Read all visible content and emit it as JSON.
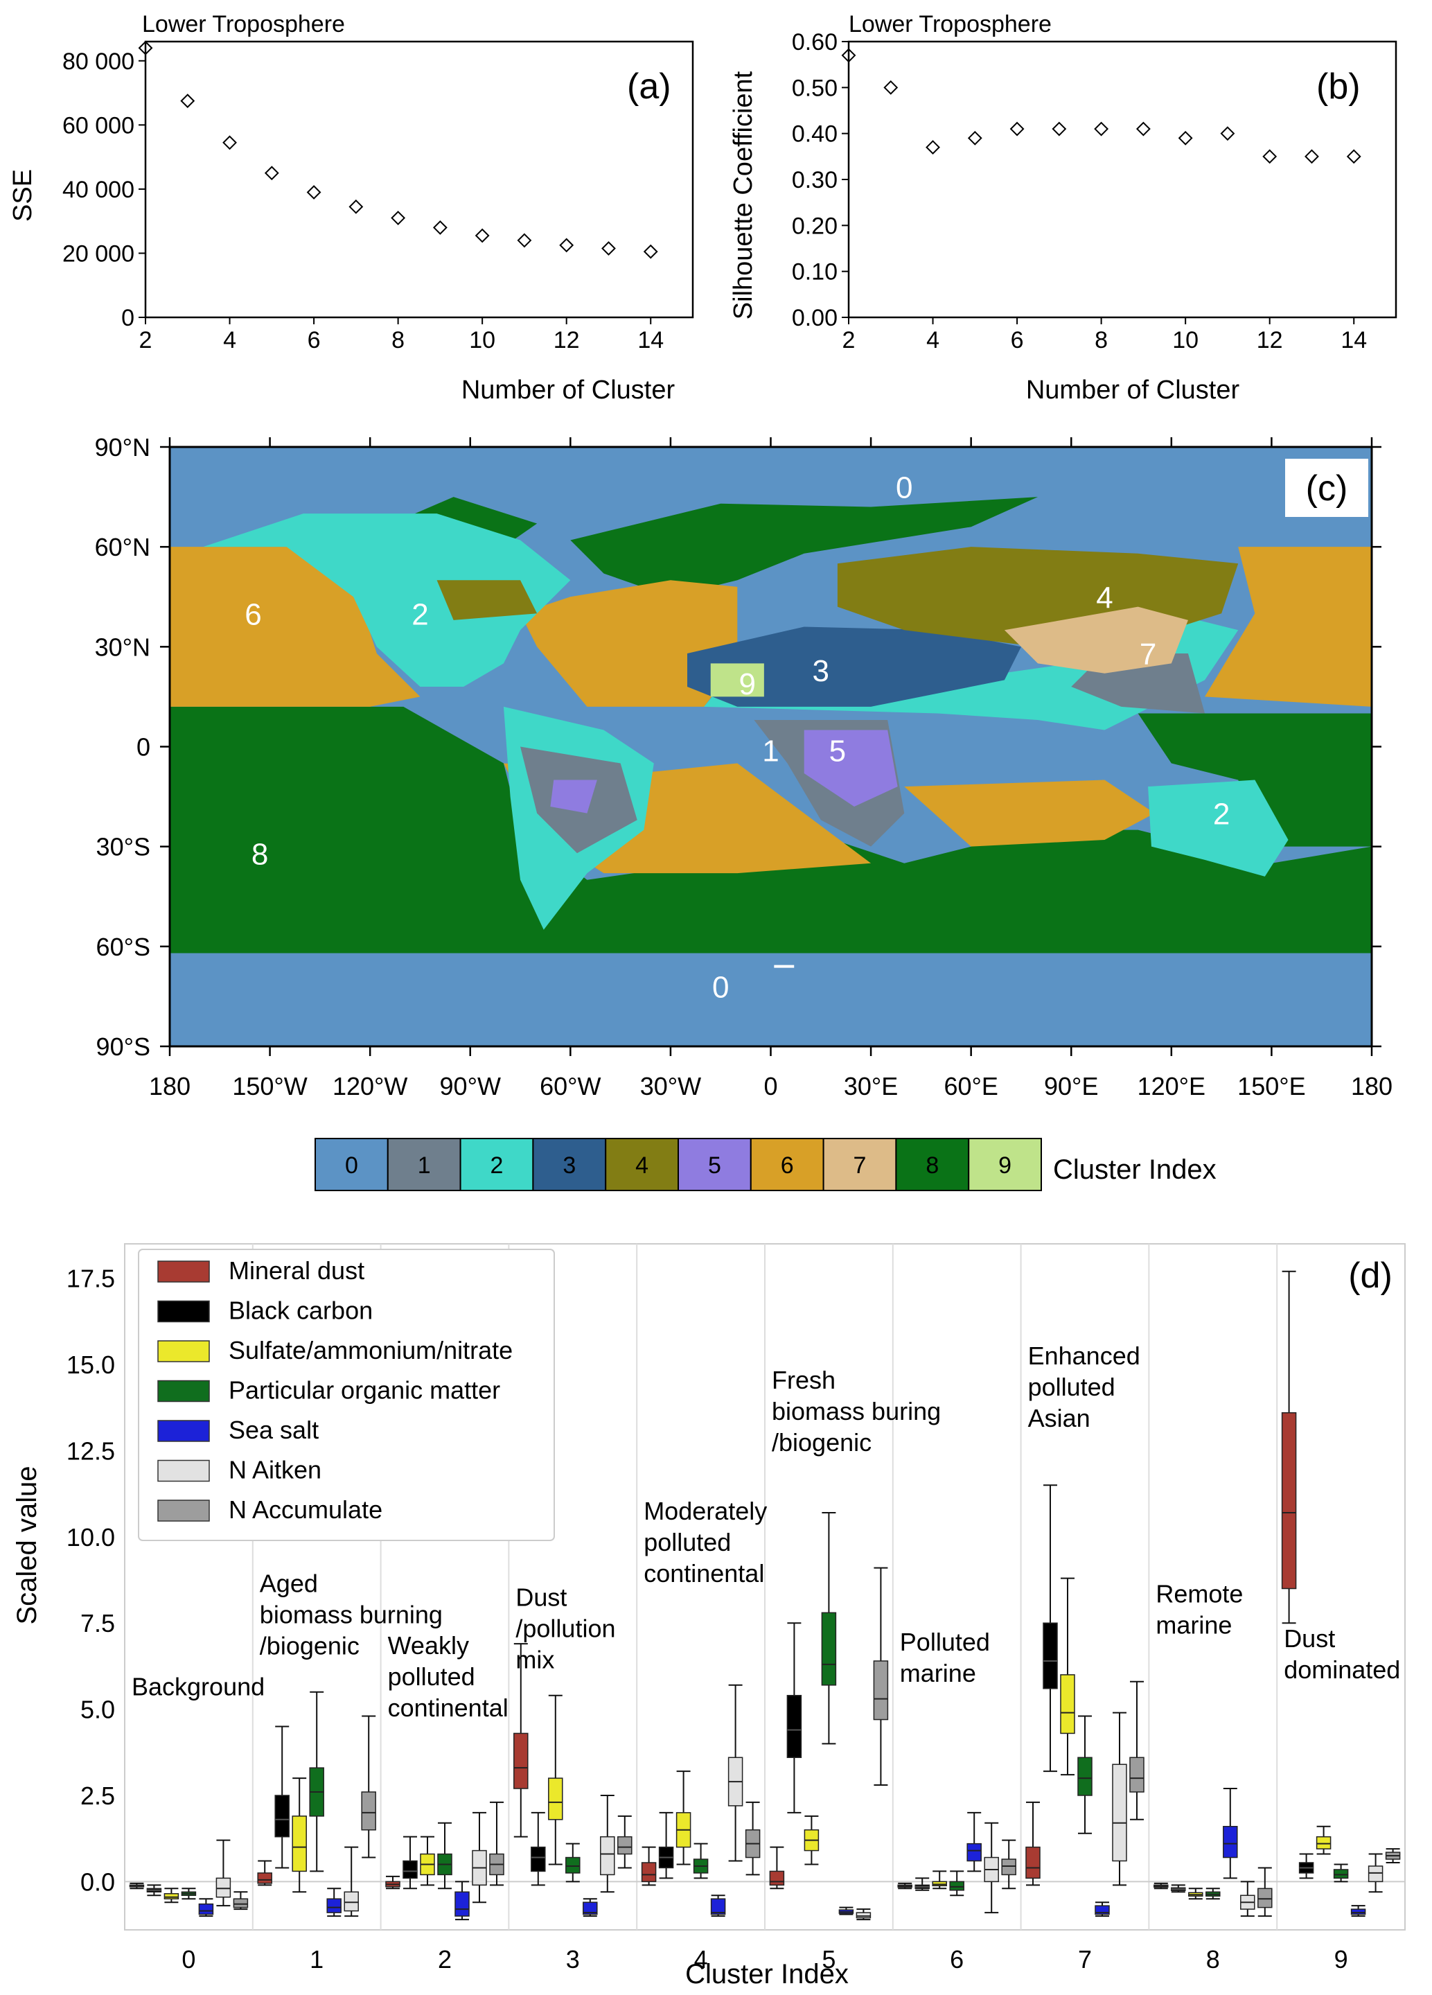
{
  "panel_a": {
    "title": "Lower Troposphere",
    "tag": "(a)",
    "xlabel": "Number of Cluster",
    "ylabel": "SSE",
    "xticks": [
      "2",
      "4",
      "6",
      "8",
      "10",
      "12",
      "14"
    ],
    "yticks": [
      "0",
      "20 000",
      "40 000",
      "60 000",
      "80 000"
    ]
  },
  "panel_b": {
    "title": "Lower Troposphere",
    "tag": "(b)",
    "xlabel": "Number of Cluster",
    "ylabel": "Silhouette Coefficient",
    "xticks": [
      "2",
      "4",
      "6",
      "8",
      "10",
      "12",
      "14"
    ],
    "yticks": [
      "0.00",
      "0.10",
      "0.20",
      "0.30",
      "0.40",
      "0.50",
      "0.60"
    ]
  },
  "panel_c": {
    "tag": "(c)",
    "lat_labels": [
      "90°N",
      "60°N",
      "30°N",
      "0",
      "30°S",
      "60°S",
      "90°S"
    ],
    "lon_labels": [
      "180",
      "150°W",
      "120°W",
      "90°W",
      "60°W",
      "30°W",
      "0",
      "30°E",
      "60°E",
      "90°E",
      "120°E",
      "150°E",
      "180"
    ],
    "region_labels": [
      {
        "text": "0",
        "lon": 40,
        "lat": 78
      },
      {
        "text": "0",
        "lon": -15,
        "lat": -72
      },
      {
        "text": "1",
        "lon": 0,
        "lat": -1
      },
      {
        "text": "2",
        "lon": -105,
        "lat": 40
      },
      {
        "text": "2",
        "lon": 135,
        "lat": -20
      },
      {
        "text": "3",
        "lon": 15,
        "lat": 23
      },
      {
        "text": "4",
        "lon": 100,
        "lat": 45
      },
      {
        "text": "5",
        "lon": 20,
        "lat": -1
      },
      {
        "text": "6",
        "lon": -155,
        "lat": 40
      },
      {
        "text": "7",
        "lon": 113,
        "lat": 28
      },
      {
        "text": "8",
        "lon": -153,
        "lat": -32
      },
      {
        "text": "9",
        "lon": -7,
        "lat": 19
      }
    ],
    "colorbar_title": "Cluster Index",
    "colorbar_labels": [
      "0",
      "1",
      "2",
      "3",
      "4",
      "5",
      "6",
      "7",
      "8",
      "9"
    ],
    "cluster_colors": [
      "#5c93c5",
      "#6f7f8d",
      "#3fd8c8",
      "#2e5e8e",
      "#827d14",
      "#8f7ce0",
      "#d8a027",
      "#ddbb88",
      "#0a7317",
      "#bfe38a"
    ]
  },
  "panel_d": {
    "tag": "(d)",
    "xlabel": "Cluster Index",
    "ylabel": "Scaled value",
    "yticks": [
      "0.0",
      "2.5",
      "5.0",
      "7.5",
      "10.0",
      "12.5",
      "15.0",
      "17.5"
    ],
    "xticks": [
      "0",
      "1",
      "2",
      "3",
      "4",
      "5",
      "6",
      "7",
      "8",
      "9"
    ],
    "legend": [
      {
        "label": "Mineral dust",
        "color": "#a83b32"
      },
      {
        "label": "Black carbon",
        "color": "#000000"
      },
      {
        "label": "Sulfate/ammonium/nitrate",
        "color": "#ebe82b"
      },
      {
        "label": "Particular organic matter",
        "color": "#106e1e"
      },
      {
        "label": "Sea salt",
        "color": "#1c22d8"
      },
      {
        "label": "N Aitken",
        "color": "#e2e2e2"
      },
      {
        "label": "N Accumulate",
        "color": "#9d9d9d"
      }
    ],
    "annotations": [
      {
        "cluster": 0,
        "lines": [
          "Background"
        ]
      },
      {
        "cluster": 1,
        "lines": [
          "Aged",
          "biomass burning",
          "/biogenic"
        ]
      },
      {
        "cluster": 2,
        "lines": [
          "Weakly",
          "polluted",
          "continental"
        ]
      },
      {
        "cluster": 3,
        "lines": [
          "Dust",
          "/pollution",
          "mix"
        ]
      },
      {
        "cluster": 4,
        "lines": [
          "Moderately",
          "polluted",
          "continental"
        ]
      },
      {
        "cluster": 5,
        "lines": [
          "Fresh",
          "biomass buring",
          "/biogenic"
        ]
      },
      {
        "cluster": 6,
        "lines": [
          "Polluted",
          "marine"
        ]
      },
      {
        "cluster": 7,
        "lines": [
          "Enhanced",
          "polluted",
          "Asian"
        ]
      },
      {
        "cluster": 8,
        "lines": [
          "Remote",
          "marine"
        ]
      },
      {
        "cluster": 9,
        "lines": [
          "Dust",
          "dominated"
        ]
      }
    ]
  },
  "chart_data": [
    {
      "type": "scatter",
      "title": "Lower Troposphere",
      "xlabel": "Number of Cluster",
      "ylabel": "SSE",
      "xlim": [
        2,
        15
      ],
      "ylim": [
        0,
        86000
      ],
      "x": [
        2,
        3,
        4,
        5,
        6,
        7,
        8,
        9,
        10,
        11,
        12,
        13,
        14
      ],
      "y": [
        84000,
        67500,
        54500,
        45000,
        39000,
        34500,
        31000,
        28000,
        25500,
        24000,
        22500,
        21500,
        20500
      ]
    },
    {
      "type": "scatter",
      "title": "Lower Troposphere",
      "xlabel": "Number of Cluster",
      "ylabel": "Silhouette Coefficient",
      "xlim": [
        2,
        15
      ],
      "ylim": [
        0,
        0.6
      ],
      "x": [
        2,
        3,
        4,
        5,
        6,
        7,
        8,
        9,
        10,
        11,
        12,
        13,
        14
      ],
      "y": [
        0.57,
        0.5,
        0.37,
        0.39,
        0.41,
        0.41,
        0.41,
        0.41,
        0.39,
        0.4,
        0.35,
        0.35,
        0.35
      ]
    },
    {
      "type": "box",
      "title": "",
      "xlabel": "Cluster Index",
      "ylabel": "Scaled value",
      "ylim": [
        -1.4,
        18.5
      ],
      "categories": [
        "0",
        "1",
        "2",
        "3",
        "4",
        "5",
        "6",
        "7",
        "8",
        "9"
      ],
      "series": [
        {
          "name": "Mineral dust",
          "boxes": [
            {
              "whislo": -0.2,
              "q1": -0.15,
              "med": -0.12,
              "q3": -0.1,
              "whishi": -0.05
            },
            {
              "whislo": -0.1,
              "q1": -0.05,
              "med": 0.05,
              "q3": 0.25,
              "whishi": 0.6
            },
            {
              "whislo": -0.2,
              "q1": -0.15,
              "med": -0.08,
              "q3": 0.0,
              "whishi": 0.15
            },
            {
              "whislo": 1.3,
              "q1": 2.7,
              "med": 3.3,
              "q3": 4.3,
              "whishi": 6.9
            },
            {
              "whislo": -0.1,
              "q1": 0.0,
              "med": 0.2,
              "q3": 0.55,
              "whishi": 1.0
            },
            {
              "whislo": -0.2,
              "q1": -0.1,
              "med": 0.0,
              "q3": 0.3,
              "whishi": 1.0
            },
            {
              "whislo": -0.2,
              "q1": -0.16,
              "med": -0.13,
              "q3": -0.1,
              "whishi": -0.05
            },
            {
              "whislo": -0.1,
              "q1": 0.1,
              "med": 0.4,
              "q3": 1.0,
              "whishi": 2.3
            },
            {
              "whislo": -0.2,
              "q1": -0.16,
              "med": -0.13,
              "q3": -0.1,
              "whishi": -0.05
            },
            {
              "whislo": 7.5,
              "q1": 8.5,
              "med": 10.7,
              "q3": 13.6,
              "whishi": 17.7
            }
          ]
        },
        {
          "name": "Black carbon",
          "boxes": [
            {
              "whislo": -0.4,
              "q1": -0.3,
              "med": -0.25,
              "q3": -0.2,
              "whishi": -0.1
            },
            {
              "whislo": 0.4,
              "q1": 1.3,
              "med": 1.8,
              "q3": 2.5,
              "whishi": 4.5
            },
            {
              "whislo": -0.2,
              "q1": 0.1,
              "med": 0.3,
              "q3": 0.6,
              "whishi": 1.3
            },
            {
              "whislo": -0.1,
              "q1": 0.3,
              "med": 0.7,
              "q3": 1.0,
              "whishi": 2.0
            },
            {
              "whislo": 0.1,
              "q1": 0.4,
              "med": 0.7,
              "q3": 1.0,
              "whishi": 2.0
            },
            {
              "whislo": 2.0,
              "q1": 3.6,
              "med": 4.4,
              "q3": 5.4,
              "whishi": 7.5
            },
            {
              "whislo": -0.25,
              "q1": -0.2,
              "med": -0.15,
              "q3": -0.1,
              "whishi": 0.1
            },
            {
              "whislo": 3.2,
              "q1": 5.6,
              "med": 6.4,
              "q3": 7.5,
              "whishi": 11.5
            },
            {
              "whislo": -0.3,
              "q1": -0.26,
              "med": -0.22,
              "q3": -0.18,
              "whishi": -0.1
            },
            {
              "whislo": 0.1,
              "q1": 0.25,
              "med": 0.4,
              "q3": 0.55,
              "whishi": 0.8
            }
          ]
        },
        {
          "name": "Sulfate/ammonium/nitrate",
          "boxes": [
            {
              "whislo": -0.6,
              "q1": -0.5,
              "med": -0.45,
              "q3": -0.35,
              "whishi": -0.2
            },
            {
              "whislo": -0.3,
              "q1": 0.3,
              "med": 1.0,
              "q3": 1.9,
              "whishi": 3.0
            },
            {
              "whislo": -0.1,
              "q1": 0.2,
              "med": 0.5,
              "q3": 0.8,
              "whishi": 1.3
            },
            {
              "whislo": 0.5,
              "q1": 1.8,
              "med": 2.3,
              "q3": 3.0,
              "whishi": 5.4
            },
            {
              "whislo": 0.5,
              "q1": 1.0,
              "med": 1.5,
              "q3": 2.0,
              "whishi": 3.2
            },
            {
              "whislo": 0.5,
              "q1": 0.9,
              "med": 1.2,
              "q3": 1.5,
              "whishi": 1.9
            },
            {
              "whislo": -0.2,
              "q1": -0.12,
              "med": -0.08,
              "q3": 0.0,
              "whishi": 0.3
            },
            {
              "whislo": 3.1,
              "q1": 4.3,
              "med": 4.9,
              "q3": 6.0,
              "whishi": 8.8
            },
            {
              "whislo": -0.5,
              "q1": -0.42,
              "med": -0.38,
              "q3": -0.32,
              "whishi": -0.2
            },
            {
              "whislo": 0.8,
              "q1": 0.95,
              "med": 1.1,
              "q3": 1.3,
              "whishi": 1.6
            }
          ]
        },
        {
          "name": "Particular organic matter",
          "boxes": [
            {
              "whislo": -0.5,
              "q1": -0.4,
              "med": -0.35,
              "q3": -0.3,
              "whishi": -0.2
            },
            {
              "whislo": 0.3,
              "q1": 1.9,
              "med": 2.6,
              "q3": 3.3,
              "whishi": 5.5
            },
            {
              "whislo": -0.2,
              "q1": 0.2,
              "med": 0.5,
              "q3": 0.8,
              "whishi": 1.7
            },
            {
              "whislo": 0.0,
              "q1": 0.25,
              "med": 0.45,
              "q3": 0.7,
              "whishi": 1.1
            },
            {
              "whislo": 0.1,
              "q1": 0.25,
              "med": 0.45,
              "q3": 0.65,
              "whishi": 1.1
            },
            {
              "whislo": 4.0,
              "q1": 5.7,
              "med": 6.3,
              "q3": 7.8,
              "whishi": 10.7
            },
            {
              "whislo": -0.4,
              "q1": -0.25,
              "med": -0.15,
              "q3": 0.0,
              "whishi": 0.3
            },
            {
              "whislo": 1.4,
              "q1": 2.5,
              "med": 3.0,
              "q3": 3.6,
              "whishi": 4.8
            },
            {
              "whislo": -0.5,
              "q1": -0.42,
              "med": -0.37,
              "q3": -0.3,
              "whishi": -0.2
            },
            {
              "whislo": 0.0,
              "q1": 0.1,
              "med": 0.2,
              "q3": 0.35,
              "whishi": 0.5
            }
          ]
        },
        {
          "name": "Sea salt",
          "boxes": [
            {
              "whislo": -1.0,
              "q1": -0.95,
              "med": -0.85,
              "q3": -0.65,
              "whishi": -0.5
            },
            {
              "whislo": -1.0,
              "q1": -0.9,
              "med": -0.75,
              "q3": -0.5,
              "whishi": -0.2
            },
            {
              "whislo": -1.1,
              "q1": -1.0,
              "med": -0.8,
              "q3": -0.3,
              "whishi": 0.0
            },
            {
              "whislo": -1.0,
              "q1": -0.95,
              "med": -0.9,
              "q3": -0.6,
              "whishi": -0.5
            },
            {
              "whislo": -1.0,
              "q1": -0.95,
              "med": -0.9,
              "q3": -0.5,
              "whishi": -0.4
            },
            {
              "whislo": -0.95,
              "q1": -0.92,
              "med": -0.88,
              "q3": -0.82,
              "whishi": -0.75
            },
            {
              "whislo": 0.3,
              "q1": 0.6,
              "med": 0.9,
              "q3": 1.1,
              "whishi": 2.0
            },
            {
              "whislo": -1.0,
              "q1": -0.95,
              "med": -0.9,
              "q3": -0.7,
              "whishi": -0.6
            },
            {
              "whislo": 0.1,
              "q1": 0.7,
              "med": 1.1,
              "q3": 1.6,
              "whishi": 2.7
            },
            {
              "whislo": -1.0,
              "q1": -0.95,
              "med": -0.9,
              "q3": -0.8,
              "whishi": -0.7
            }
          ]
        },
        {
          "name": "N Aitken",
          "boxes": [
            {
              "whislo": -0.7,
              "q1": -0.45,
              "med": -0.2,
              "q3": 0.1,
              "whishi": 1.2
            },
            {
              "whislo": -1.0,
              "q1": -0.85,
              "med": -0.6,
              "q3": -0.3,
              "whishi": 1.0
            },
            {
              "whislo": -0.6,
              "q1": -0.1,
              "med": 0.4,
              "q3": 0.9,
              "whishi": 2.0
            },
            {
              "whislo": -0.3,
              "q1": 0.2,
              "med": 0.8,
              "q3": 1.3,
              "whishi": 2.5
            },
            {
              "whislo": 0.6,
              "q1": 2.2,
              "med": 2.9,
              "q3": 3.6,
              "whishi": 5.7
            },
            {
              "whislo": -1.1,
              "q1": -1.05,
              "med": -1.0,
              "q3": -0.9,
              "whishi": -0.8
            },
            {
              "whislo": -0.9,
              "q1": 0.0,
              "med": 0.35,
              "q3": 0.7,
              "whishi": 1.7
            },
            {
              "whislo": -0.1,
              "q1": 0.6,
              "med": 1.7,
              "q3": 3.4,
              "whishi": 4.9
            },
            {
              "whislo": -1.0,
              "q1": -0.8,
              "med": -0.6,
              "q3": -0.4,
              "whishi": 0.0
            },
            {
              "whislo": -0.3,
              "q1": 0.0,
              "med": 0.25,
              "q3": 0.45,
              "whishi": 0.8
            }
          ]
        },
        {
          "name": "N Accumulate",
          "boxes": [
            {
              "whislo": -0.8,
              "q1": -0.75,
              "med": -0.65,
              "q3": -0.5,
              "whishi": -0.3
            },
            {
              "whislo": 0.7,
              "q1": 1.5,
              "med": 2.0,
              "q3": 2.6,
              "whishi": 4.8
            },
            {
              "whislo": -0.1,
              "q1": 0.2,
              "med": 0.5,
              "q3": 0.8,
              "whishi": 2.3
            },
            {
              "whislo": 0.4,
              "q1": 0.8,
              "med": 1.0,
              "q3": 1.3,
              "whishi": 1.9
            },
            {
              "whislo": 0.2,
              "q1": 0.7,
              "med": 1.1,
              "q3": 1.5,
              "whishi": 2.3
            },
            {
              "whislo": 2.8,
              "q1": 4.7,
              "med": 5.3,
              "q3": 6.4,
              "whishi": 9.1
            },
            {
              "whislo": -0.2,
              "q1": 0.2,
              "med": 0.45,
              "q3": 0.65,
              "whishi": 1.2
            },
            {
              "whislo": 1.8,
              "q1": 2.6,
              "med": 3.0,
              "q3": 3.6,
              "whishi": 5.8
            },
            {
              "whislo": -1.0,
              "q1": -0.75,
              "med": -0.5,
              "q3": -0.2,
              "whishi": 0.4
            },
            {
              "whislo": 0.55,
              "q1": 0.65,
              "med": 0.75,
              "q3": 0.85,
              "whishi": 0.95
            }
          ]
        }
      ]
    }
  ]
}
